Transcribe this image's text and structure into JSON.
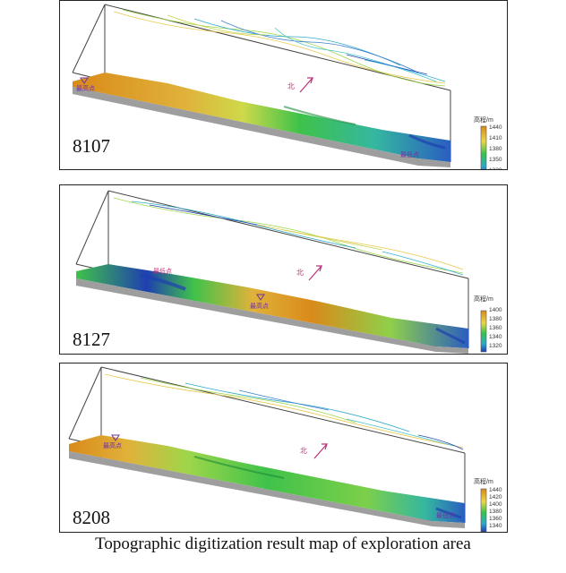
{
  "panels": [
    {
      "label": "8107",
      "legend": {
        "title": "高程/m",
        "ticks": [
          "1440",
          "1410",
          "1380",
          "1350",
          "1320"
        ]
      },
      "north_label": "北",
      "markers": [
        "最高点",
        "最低点"
      ]
    },
    {
      "label": "8127",
      "legend": {
        "title": "高程/m",
        "ticks": [
          "1400",
          "1380",
          "1360",
          "1340",
          "1320"
        ]
      },
      "north_label": "北",
      "markers": [
        "最低点",
        "最高点"
      ]
    },
    {
      "label": "8208",
      "legend": {
        "title": "高程/m",
        "ticks": [
          "1440",
          "1420",
          "1400",
          "1380",
          "1360",
          "1340"
        ]
      },
      "north_label": "北",
      "markers": [
        "最高点",
        "最低点"
      ]
    }
  ],
  "caption": "Topographic digitization result map of exploration area",
  "colors": {
    "high": "#d98a1a",
    "mid_high": "#e9d64a",
    "mid": "#38c24a",
    "mid_low": "#2ea9c9",
    "low": "#1f3fb0"
  }
}
